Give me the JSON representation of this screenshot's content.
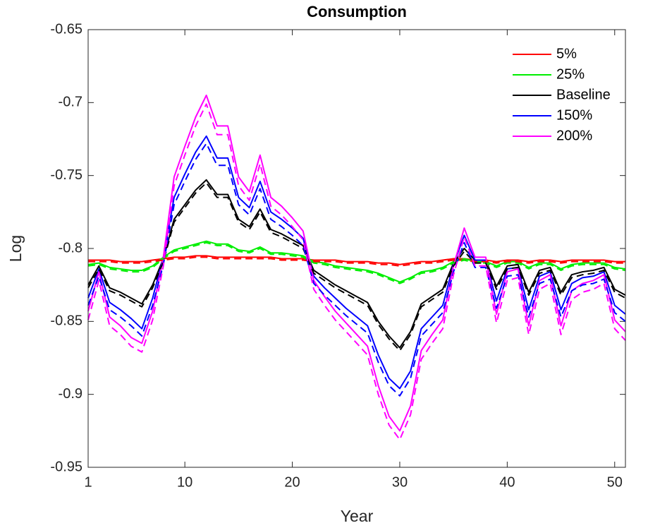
{
  "chart_data": {
    "type": "line",
    "title": "Consumption",
    "x_label": "Year",
    "y_label": "Log",
    "x": [
      1,
      2,
      3,
      4,
      5,
      6,
      7,
      8,
      9,
      10,
      11,
      12,
      13,
      14,
      15,
      16,
      17,
      18,
      19,
      20,
      21,
      22,
      23,
      24,
      25,
      26,
      27,
      28,
      29,
      30,
      31,
      32,
      33,
      34,
      35,
      36,
      37,
      38,
      39,
      40,
      41,
      42,
      43,
      44,
      45,
      46,
      47,
      48,
      49,
      50,
      51
    ],
    "xlim": [
      1,
      51
    ],
    "xticks": [
      1,
      10,
      20,
      30,
      40,
      50
    ],
    "ylim": [
      -0.95,
      -0.65
    ],
    "yticks": [
      -0.95,
      -0.9,
      -0.85,
      -0.8,
      -0.75,
      -0.7,
      -0.65
    ],
    "legend": "top-right",
    "series": [
      {
        "name": "5%",
        "color": "#ff0000",
        "values": [
          -0.808,
          -0.808,
          -0.808,
          -0.809,
          -0.809,
          -0.809,
          -0.808,
          -0.807,
          -0.806,
          -0.806,
          -0.805,
          -0.805,
          -0.806,
          -0.806,
          -0.806,
          -0.806,
          -0.806,
          -0.806,
          -0.807,
          -0.807,
          -0.807,
          -0.808,
          -0.808,
          -0.808,
          -0.809,
          -0.809,
          -0.809,
          -0.81,
          -0.81,
          -0.811,
          -0.81,
          -0.809,
          -0.809,
          -0.808,
          -0.807,
          -0.807,
          -0.808,
          -0.808,
          -0.809,
          -0.808,
          -0.808,
          -0.809,
          -0.808,
          -0.808,
          -0.809,
          -0.808,
          -0.808,
          -0.808,
          -0.808,
          -0.809,
          -0.809
        ]
      },
      {
        "name": "25%",
        "color": "#00ee00",
        "values": [
          -0.811,
          -0.81,
          -0.813,
          -0.814,
          -0.815,
          -0.815,
          -0.812,
          -0.806,
          -0.801,
          -0.799,
          -0.797,
          -0.795,
          -0.797,
          -0.797,
          -0.801,
          -0.802,
          -0.799,
          -0.803,
          -0.803,
          -0.804,
          -0.805,
          -0.809,
          -0.81,
          -0.812,
          -0.813,
          -0.814,
          -0.815,
          -0.817,
          -0.82,
          -0.823,
          -0.82,
          -0.816,
          -0.815,
          -0.813,
          -0.809,
          -0.807,
          -0.809,
          -0.809,
          -0.812,
          -0.809,
          -0.809,
          -0.813,
          -0.81,
          -0.81,
          -0.814,
          -0.811,
          -0.81,
          -0.81,
          -0.81,
          -0.813,
          -0.814
        ]
      },
      {
        "name": "Baseline",
        "color": "#000000",
        "values": [
          -0.825,
          -0.812,
          -0.827,
          -0.83,
          -0.834,
          -0.838,
          -0.825,
          -0.807,
          -0.78,
          -0.77,
          -0.76,
          -0.753,
          -0.763,
          -0.763,
          -0.78,
          -0.785,
          -0.773,
          -0.787,
          -0.79,
          -0.794,
          -0.798,
          -0.815,
          -0.82,
          -0.825,
          -0.829,
          -0.833,
          -0.837,
          -0.85,
          -0.86,
          -0.868,
          -0.857,
          -0.838,
          -0.833,
          -0.828,
          -0.81,
          -0.8,
          -0.808,
          -0.808,
          -0.826,
          -0.812,
          -0.811,
          -0.83,
          -0.815,
          -0.813,
          -0.83,
          -0.818,
          -0.816,
          -0.815,
          -0.813,
          -0.828,
          -0.832
        ]
      },
      {
        "name": "150%",
        "color": "#0000ff",
        "values": [
          -0.834,
          -0.814,
          -0.837,
          -0.842,
          -0.848,
          -0.855,
          -0.834,
          -0.806,
          -0.765,
          -0.749,
          -0.734,
          -0.723,
          -0.738,
          -0.738,
          -0.765,
          -0.772,
          -0.754,
          -0.775,
          -0.78,
          -0.786,
          -0.793,
          -0.819,
          -0.827,
          -0.834,
          -0.841,
          -0.847,
          -0.853,
          -0.873,
          -0.889,
          -0.896,
          -0.884,
          -0.855,
          -0.847,
          -0.839,
          -0.811,
          -0.791,
          -0.808,
          -0.808,
          -0.836,
          -0.814,
          -0.813,
          -0.842,
          -0.819,
          -0.816,
          -0.842,
          -0.824,
          -0.82,
          -0.819,
          -0.816,
          -0.839,
          -0.845
        ]
      },
      {
        "name": "200%",
        "color": "#ff00ff",
        "values": [
          -0.843,
          -0.816,
          -0.847,
          -0.853,
          -0.861,
          -0.865,
          -0.843,
          -0.806,
          -0.751,
          -0.73,
          -0.71,
          -0.695,
          -0.716,
          -0.716,
          -0.751,
          -0.761,
          -0.736,
          -0.765,
          -0.771,
          -0.779,
          -0.788,
          -0.822,
          -0.833,
          -0.843,
          -0.851,
          -0.859,
          -0.867,
          -0.894,
          -0.915,
          -0.925,
          -0.908,
          -0.87,
          -0.859,
          -0.849,
          -0.812,
          -0.786,
          -0.806,
          -0.806,
          -0.845,
          -0.816,
          -0.814,
          -0.853,
          -0.822,
          -0.818,
          -0.853,
          -0.829,
          -0.824,
          -0.822,
          -0.818,
          -0.849,
          -0.857
        ]
      },
      {
        "color": "#ff0000",
        "line_style": "dashed",
        "values": [
          -0.809,
          -0.809,
          -0.809,
          -0.81,
          -0.81,
          -0.81,
          -0.809,
          -0.808,
          -0.807,
          -0.807,
          -0.806,
          -0.806,
          -0.807,
          -0.807,
          -0.807,
          -0.807,
          -0.807,
          -0.807,
          -0.808,
          -0.808,
          -0.808,
          -0.809,
          -0.809,
          -0.809,
          -0.81,
          -0.81,
          -0.81,
          -0.811,
          -0.811,
          -0.812,
          -0.811,
          -0.81,
          -0.81,
          -0.809,
          -0.808,
          -0.808,
          -0.809,
          -0.809,
          -0.81,
          -0.809,
          -0.809,
          -0.81,
          -0.809,
          -0.809,
          -0.81,
          -0.809,
          -0.809,
          -0.809,
          -0.809,
          -0.81,
          -0.81
        ]
      },
      {
        "color": "#00ee00",
        "line_style": "dashed",
        "values": [
          -0.812,
          -0.811,
          -0.814,
          -0.815,
          -0.816,
          -0.816,
          -0.813,
          -0.807,
          -0.802,
          -0.8,
          -0.798,
          -0.796,
          -0.798,
          -0.798,
          -0.802,
          -0.803,
          -0.8,
          -0.804,
          -0.804,
          -0.805,
          -0.806,
          -0.81,
          -0.811,
          -0.813,
          -0.814,
          -0.815,
          -0.816,
          -0.818,
          -0.821,
          -0.824,
          -0.821,
          -0.817,
          -0.816,
          -0.814,
          -0.81,
          -0.808,
          -0.81,
          -0.81,
          -0.813,
          -0.81,
          -0.81,
          -0.814,
          -0.811,
          -0.811,
          -0.815,
          -0.812,
          -0.811,
          -0.811,
          -0.811,
          -0.814,
          -0.815
        ]
      },
      {
        "color": "#000000",
        "line_style": "dashed",
        "values": [
          -0.827,
          -0.814,
          -0.829,
          -0.832,
          -0.836,
          -0.84,
          -0.827,
          -0.809,
          -0.782,
          -0.772,
          -0.762,
          -0.755,
          -0.765,
          -0.765,
          -0.782,
          -0.787,
          -0.775,
          -0.789,
          -0.792,
          -0.796,
          -0.8,
          -0.817,
          -0.822,
          -0.827,
          -0.831,
          -0.835,
          -0.839,
          -0.852,
          -0.862,
          -0.87,
          -0.859,
          -0.84,
          -0.835,
          -0.83,
          -0.812,
          -0.802,
          -0.81,
          -0.81,
          -0.828,
          -0.814,
          -0.813,
          -0.832,
          -0.817,
          -0.815,
          -0.832,
          -0.82,
          -0.818,
          -0.817,
          -0.815,
          -0.83,
          -0.834
        ]
      },
      {
        "color": "#0000ff",
        "line_style": "dashed",
        "values": [
          -0.839,
          -0.819,
          -0.842,
          -0.847,
          -0.853,
          -0.86,
          -0.839,
          -0.811,
          -0.77,
          -0.754,
          -0.739,
          -0.728,
          -0.743,
          -0.743,
          -0.77,
          -0.777,
          -0.759,
          -0.78,
          -0.785,
          -0.791,
          -0.798,
          -0.824,
          -0.832,
          -0.839,
          -0.846,
          -0.852,
          -0.858,
          -0.878,
          -0.894,
          -0.901,
          -0.889,
          -0.86,
          -0.852,
          -0.844,
          -0.816,
          -0.796,
          -0.813,
          -0.813,
          -0.841,
          -0.819,
          -0.818,
          -0.847,
          -0.824,
          -0.821,
          -0.847,
          -0.829,
          -0.825,
          -0.824,
          -0.821,
          -0.844,
          -0.85
        ]
      },
      {
        "color": "#ff00ff",
        "line_style": "dashed",
        "values": [
          -0.849,
          -0.822,
          -0.853,
          -0.859,
          -0.867,
          -0.871,
          -0.849,
          -0.812,
          -0.757,
          -0.736,
          -0.716,
          -0.701,
          -0.722,
          -0.722,
          -0.757,
          -0.767,
          -0.742,
          -0.771,
          -0.777,
          -0.785,
          -0.794,
          -0.828,
          -0.839,
          -0.849,
          -0.857,
          -0.865,
          -0.873,
          -0.9,
          -0.921,
          -0.931,
          -0.914,
          -0.876,
          -0.865,
          -0.855,
          -0.818,
          -0.792,
          -0.812,
          -0.812,
          -0.851,
          -0.822,
          -0.82,
          -0.859,
          -0.828,
          -0.824,
          -0.859,
          -0.835,
          -0.83,
          -0.828,
          -0.824,
          -0.855,
          -0.863
        ]
      }
    ]
  }
}
